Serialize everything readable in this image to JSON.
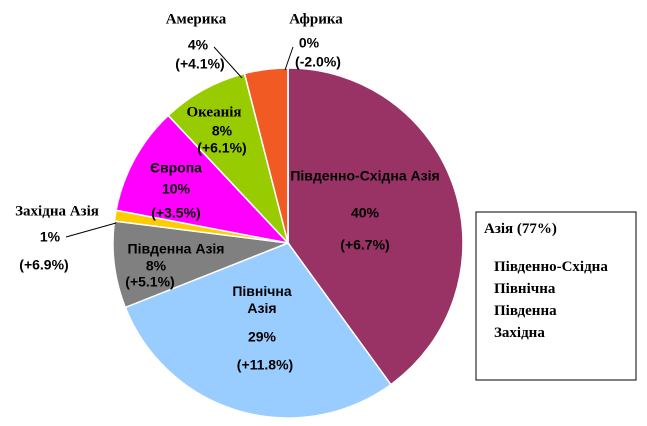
{
  "chart_data": {
    "type": "pie",
    "categories": [
      "Південно-Східна Азія",
      "Північна Азія",
      "Південна Азія",
      "Західна Азія",
      "Європа",
      "Океанія",
      "Америка",
      "Африка"
    ],
    "values": [
      40,
      29,
      8,
      1,
      10,
      8,
      4,
      0
    ],
    "value_labels": [
      "40%",
      "29%",
      "8%",
      "1%",
      "10%",
      "8%",
      "4%",
      "0%"
    ],
    "change_labels": [
      "(+6.7%)",
      "(+11.8%)",
      "(+5.1%)",
      "(+6.9%)",
      "(+3.5%)",
      "(+6.1%)",
      "(+4.1%)",
      "(-2.0%)"
    ],
    "colors": [
      "#993366",
      "#99ccff",
      "#808080",
      "#ffcc00",
      "#ff00ff",
      "#99cc00",
      "#f25a24",
      "#ffff00"
    ],
    "legend": {
      "title": "Азія (77%)",
      "items": [
        "Південно-Східна",
        "Північна",
        "Південна",
        "Західна"
      ]
    }
  }
}
